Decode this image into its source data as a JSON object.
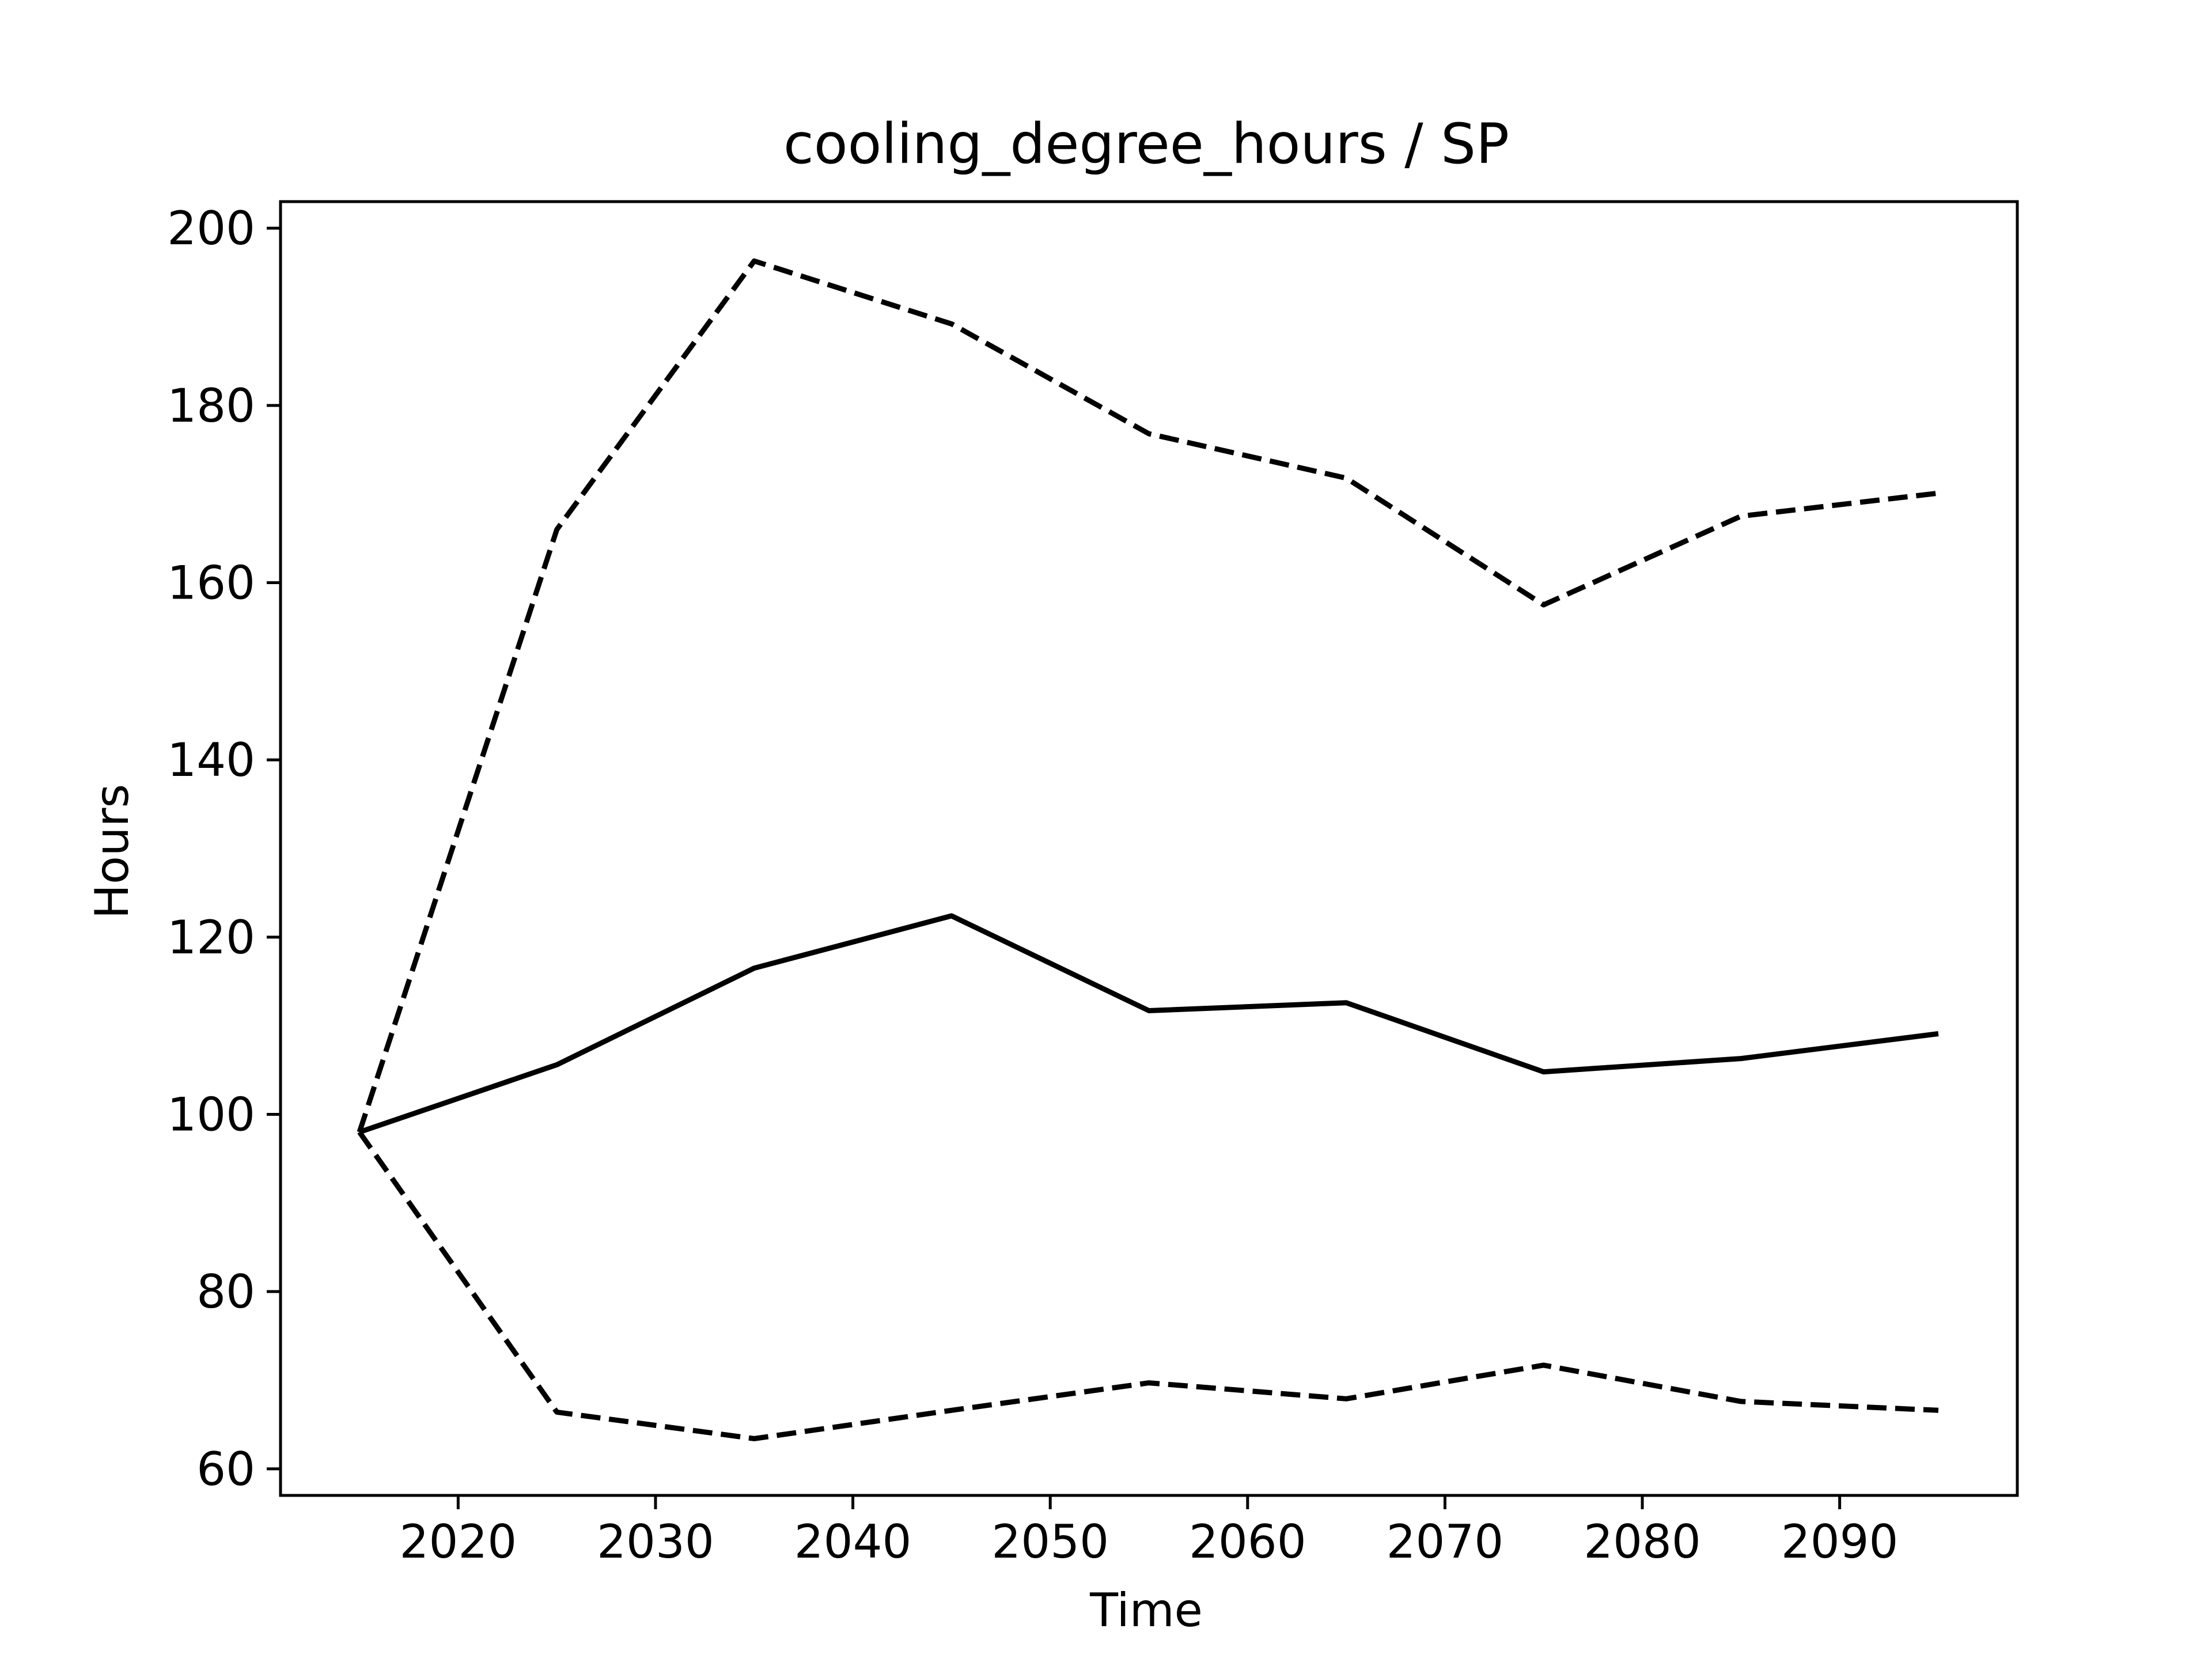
{
  "chart_data": {
    "type": "line",
    "title": "cooling_degree_hours / SP",
    "xlabel": "Time",
    "ylabel": "Hours",
    "xlim": [
      2011,
      2099
    ],
    "ylim": [
      57,
      203
    ],
    "x_ticks": [
      2020,
      2030,
      2040,
      2050,
      2060,
      2070,
      2080,
      2090
    ],
    "y_ticks": [
      60,
      80,
      100,
      120,
      140,
      160,
      180,
      200
    ],
    "grid": false,
    "legend": "none",
    "x": [
      2015,
      2025,
      2035,
      2045,
      2055,
      2065,
      2075,
      2085,
      2095
    ],
    "series": [
      {
        "style": "dashed",
        "color": "#000000",
        "values": [
          98,
          166,
          196.3,
          189.2,
          176.8,
          171.8,
          157.5,
          167.5,
          170.1
        ]
      },
      {
        "style": "solid",
        "color": "#000000",
        "values": [
          98,
          105.6,
          116.5,
          122.4,
          111.7,
          112.6,
          104.8,
          106.3,
          109.1
        ]
      },
      {
        "style": "dashed",
        "color": "#000000",
        "values": [
          98,
          66.4,
          63.4,
          66.6,
          69.7,
          67.9,
          71.7,
          67.6,
          66.6
        ]
      }
    ]
  }
}
